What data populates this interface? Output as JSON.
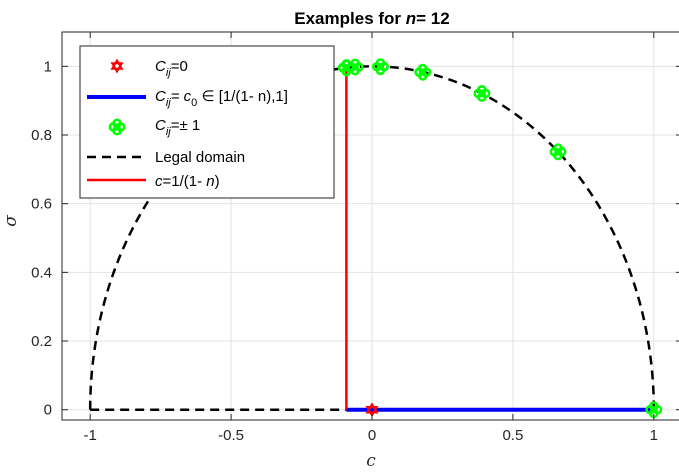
{
  "chart_data": {
    "type": "line",
    "title_prefix": "Examples for  ",
    "title_var": "n",
    "title_suffix": "= 12",
    "xlabel": "c",
    "ylabel": "σ",
    "xlim": [
      -1.1,
      1.1
    ],
    "ylim": [
      -0.03,
      1.1
    ],
    "xticks": [
      -1,
      -0.5,
      0,
      0.5,
      1
    ],
    "xtick_labels": [
      "-1",
      "-0.5",
      "0",
      "0.5",
      "1"
    ],
    "yticks": [
      0,
      0.2,
      0.4,
      0.6,
      0.8,
      1
    ],
    "ytick_labels": [
      "0",
      "0.2",
      "0.4",
      "0.6",
      "0.8",
      "1"
    ],
    "grid": true,
    "legend_position": "top-left",
    "legend": {
      "cij0": {
        "main": "C",
        "sub": "ij",
        "rest": "=0"
      },
      "cijc0": {
        "main": "C",
        "sub": "ij",
        "mid": "= c",
        "sub2": "0",
        "rest": " ∈ [1/(1- n),1]"
      },
      "cijpm": {
        "main": "C",
        "sub": "ij",
        "rest": "=± 1"
      },
      "legal": "Legal domain",
      "cline": {
        "var": "c",
        "rest": "=1/(1- ",
        "var2": "n",
        "end": ")"
      }
    },
    "series": {
      "zero_point": {
        "x": [
          0
        ],
        "y": [
          0
        ],
        "color": "#ff0000"
      },
      "c0_segment": {
        "x": [
          -0.0909,
          1
        ],
        "y": [
          0,
          0
        ],
        "color": "#0000ff"
      },
      "pm1_points": {
        "x": [
          -0.0909,
          -0.0909,
          -0.0909,
          -0.0909,
          -0.06,
          0.03,
          0.18,
          0.39,
          0.66,
          1.0
        ],
        "y": [
          0.9959,
          0.9959,
          0.9959,
          0.9959,
          0.998,
          0.999,
          0.983,
          0.921,
          0.751,
          0.0
        ],
        "color": "#00ff00"
      },
      "legal_domain": {
        "semicircle_x": [
          -1,
          1
        ],
        "baseline_x": [
          -1,
          -0.0909
        ],
        "color": "#000000"
      },
      "c_line": {
        "x": [
          -0.0909,
          -0.0909
        ],
        "y": [
          0,
          0.9959
        ],
        "color": "#ff0000"
      }
    }
  }
}
